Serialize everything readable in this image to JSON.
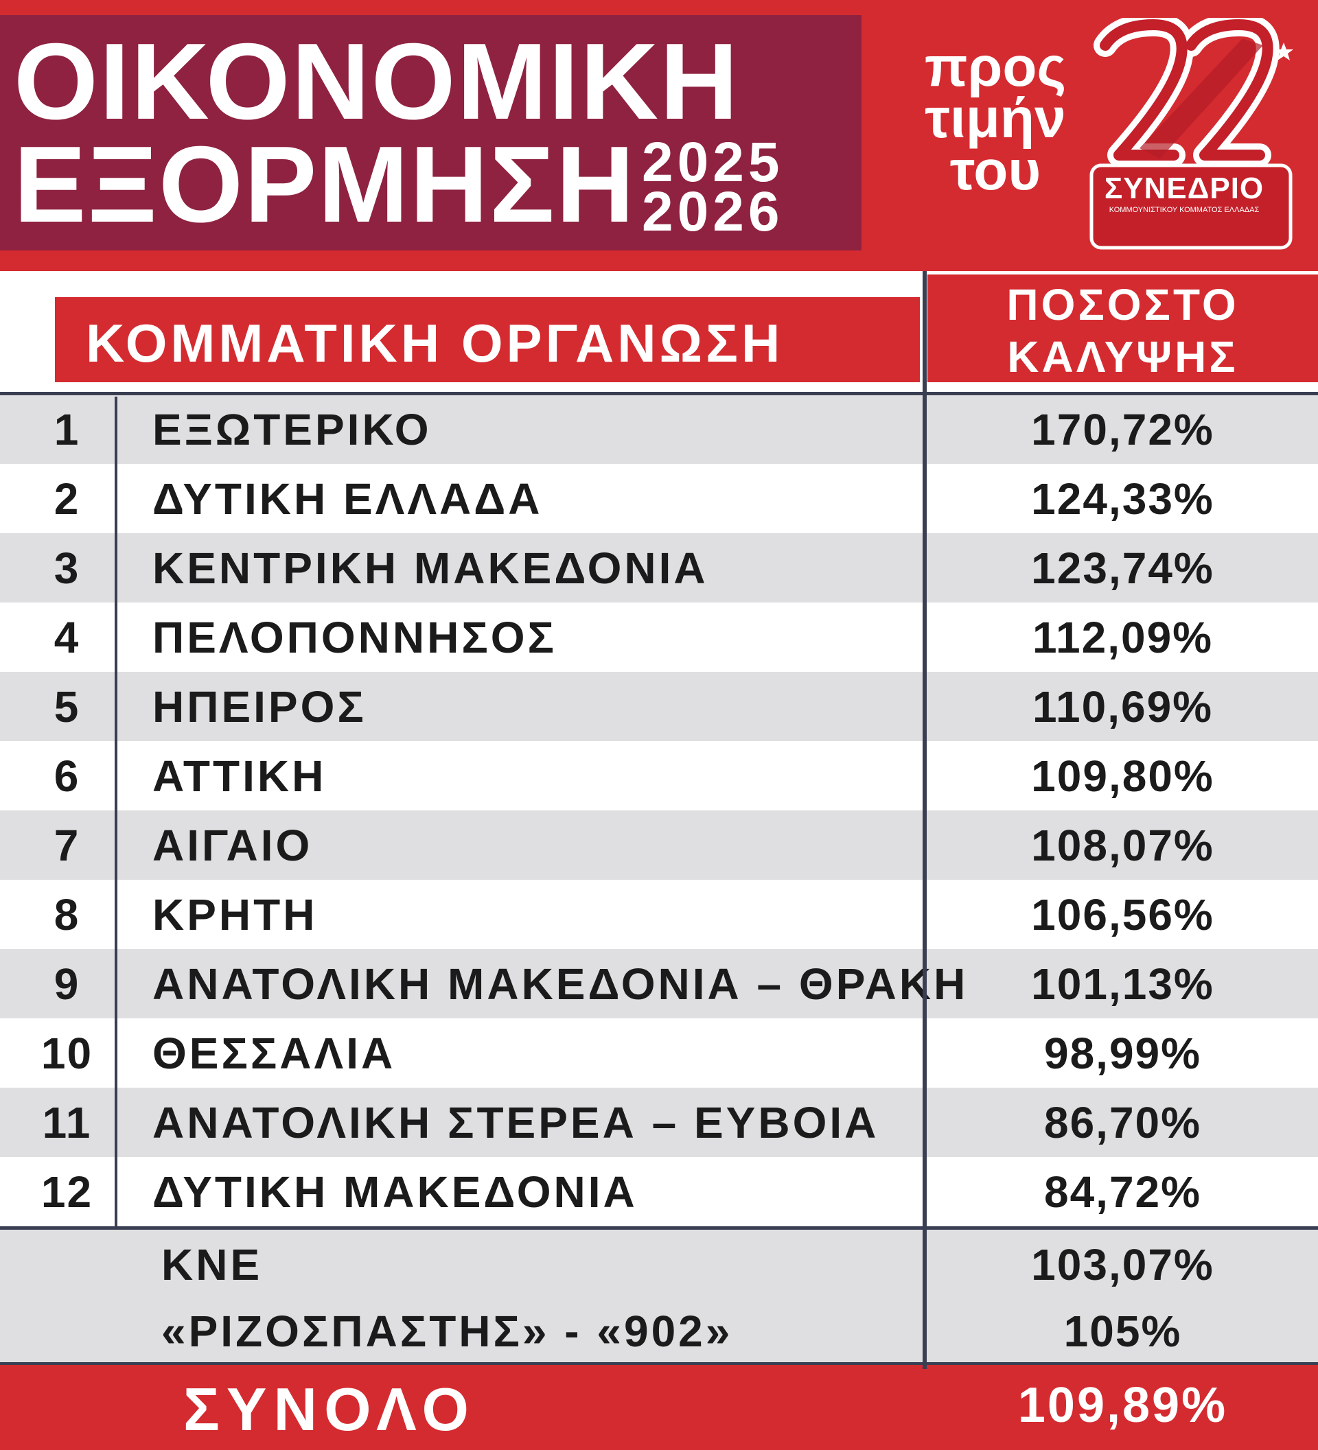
{
  "header": {
    "title_line_1": "ΟΙΚΟΝΟΜΙΚΗ",
    "title_line_2": "ΕΞΟΡΜΗΣΗ",
    "year_1": "2025",
    "year_2": "2026",
    "honor_lines": [
      "προς",
      "τιμήν",
      "του"
    ],
    "logo_number": "22",
    "logo_caption": "ΣΥΝΕΔΡΙΟ",
    "logo_subcaption": "ΚΟΜΜΟΥΝΙΣΤΙΚΟΥ ΚΟΜΜΑΤΟΣ ΕΛΛΑΔΑΣ"
  },
  "columns": {
    "organization": "ΚΟΜΜΑΤΙΚΗ ΟΡΓΑΝΩΣΗ",
    "coverage_line_1": "ΠΟΣΟΣΤΟ",
    "coverage_line_2": "ΚΑΛΥΨΗΣ"
  },
  "chart_data": {
    "type": "table",
    "columns": [
      "",
      "ΚΟΜΜΑΤΙΚΗ ΟΡΓΑΝΩΣΗ",
      "ΠΟΣΟΣΤΟ ΚΑΛΥΨΗΣ"
    ],
    "rows": [
      {
        "rank": "1",
        "region": "ΕΞΩΤΕΡΙΚΟ",
        "pct": "170,72%"
      },
      {
        "rank": "2",
        "region": "ΔΥΤΙΚΗ ΕΛΛΑΔΑ",
        "pct": "124,33%"
      },
      {
        "rank": "3",
        "region": "ΚΕΝΤΡΙΚΗ ΜΑΚΕΔΟΝΙΑ",
        "pct": "123,74%"
      },
      {
        "rank": "4",
        "region": "ΠΕΛΟΠΟΝΝΗΣΟΣ",
        "pct": "112,09%"
      },
      {
        "rank": "5",
        "region": "ΗΠΕΙΡΟΣ",
        "pct": "110,69%"
      },
      {
        "rank": "6",
        "region": "ΑΤΤΙΚΗ",
        "pct": "109,80%"
      },
      {
        "rank": "7",
        "region": "ΑΙΓΑΙΟ",
        "pct": "108,07%"
      },
      {
        "rank": "8",
        "region": "ΚΡΗΤΗ",
        "pct": "106,56%"
      },
      {
        "rank": "9",
        "region": "ΑΝΑΤΟΛΙΚΗ ΜΑΚΕΔΟΝΙΑ – ΘΡΑΚΗ",
        "pct": "101,13%"
      },
      {
        "rank": "10",
        "region": "ΘΕΣΣΑΛΙΑ",
        "pct": "98,99%"
      },
      {
        "rank": "11",
        "region": "ΑΝΑΤΟΛΙΚΗ ΣΤΕΡΕΑ – ΕΥΒΟΙΑ",
        "pct": "86,70%"
      },
      {
        "rank": "12",
        "region": "ΔΥΤΙΚΗ ΜΑΚΕΔΟΝΙΑ",
        "pct": "84,72%"
      }
    ],
    "extras": [
      {
        "label": "ΚΝΕ",
        "pct": "103,07%"
      },
      {
        "label": "«ΡΙΖΟΣΠΑΣΤΗΣ» - «902»",
        "pct": "105%"
      }
    ],
    "total": {
      "label": "ΣΥΝΟΛΟ",
      "pct": "109,89%"
    }
  },
  "colors": {
    "brand_red": "#d42b30",
    "title_maroon": "#8f2241",
    "row_alt": "#dfdfe1",
    "grid": "#3a3e52"
  }
}
